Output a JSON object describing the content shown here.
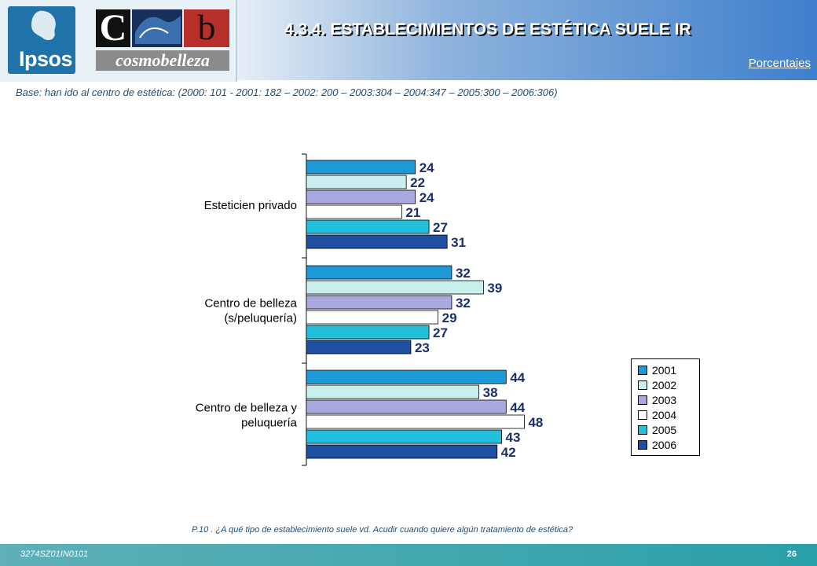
{
  "header": {
    "title": "4.3.4. ESTABLECIMIENTOS DE ESTÉTICA SUELE IR",
    "subtitle": "Porcentajes",
    "logo_ipsos": "Ipsos",
    "logo_cb_c": "C",
    "logo_cb_b": "b",
    "logo_cb_brand": "cosmobelleza"
  },
  "base_text": "Base: han ido al centro de estética: (2000: 101 - 2001: 182 – 2002: 200 – 2003:304 – 2004:347 – 2005:300 – 2006:306)",
  "question": "P.10 .  ¿A qué tipo de establecimiento suele vd. Acudir cuando quiere algún tratamiento de estética?",
  "footer": {
    "code": "3274SZ01IN0101",
    "page": "26"
  },
  "colors": {
    "2001": "#1d9ad6",
    "2002": "#c8eeee",
    "2003": "#a9a9e0",
    "2004": "#ffffff",
    "2005": "#22c0dc",
    "2006": "#1f4fa0"
  },
  "chart_data": {
    "type": "bar",
    "orientation": "horizontal",
    "categories": [
      [
        "Esteticien privado"
      ],
      [
        "Centro de belleza",
        "(s/peluquería)"
      ],
      [
        "Centro de belleza y",
        "peluquería"
      ]
    ],
    "series": [
      {
        "name": "2001",
        "values": [
          24,
          32,
          44
        ]
      },
      {
        "name": "2002",
        "values": [
          22,
          39,
          38
        ]
      },
      {
        "name": "2003",
        "values": [
          24,
          32,
          44
        ]
      },
      {
        "name": "2004",
        "values": [
          21,
          29,
          48
        ]
      },
      {
        "name": "2005",
        "values": [
          27,
          27,
          43
        ]
      },
      {
        "name": "2006",
        "values": [
          31,
          23,
          42
        ]
      }
    ],
    "legend_position": "right",
    "grid": false,
    "xlim": [
      0,
      50
    ]
  }
}
